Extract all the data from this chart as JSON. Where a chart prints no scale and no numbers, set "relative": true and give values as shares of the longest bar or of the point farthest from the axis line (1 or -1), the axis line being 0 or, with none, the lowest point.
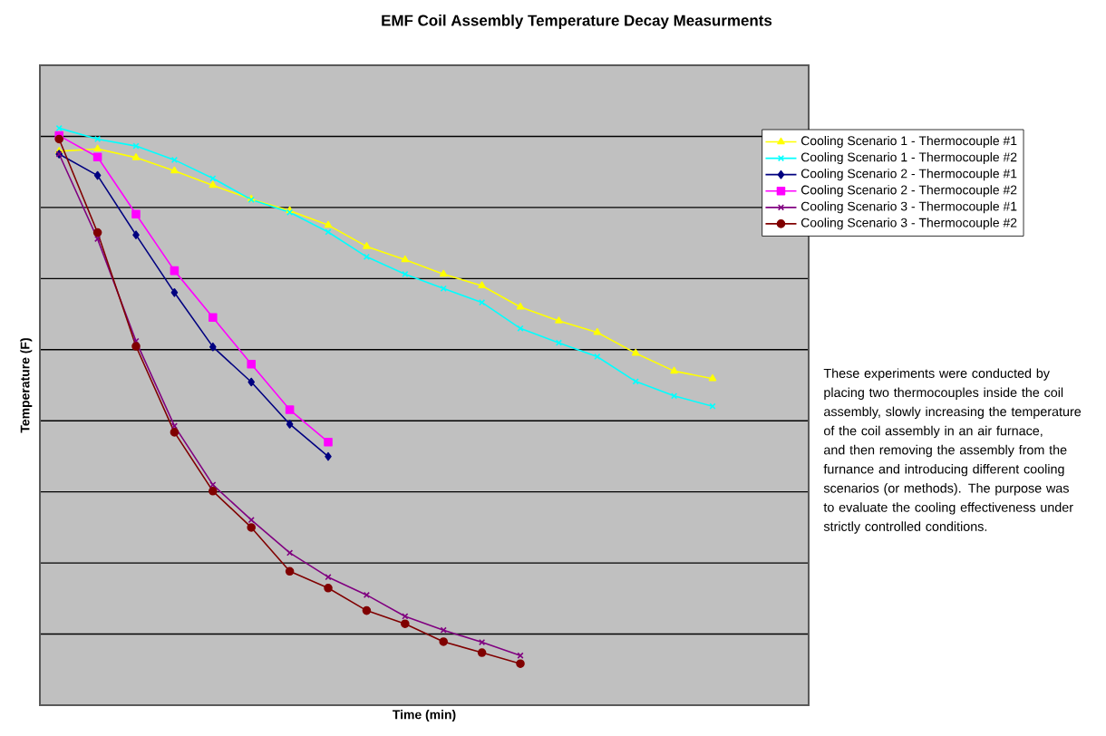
{
  "chart_data": {
    "type": "line",
    "title": "EMF Coil Assembly Temperature Decay Measurments",
    "xlabel": "Time (min)",
    "ylabel": "Temperature (F)",
    "relative": true,
    "grid": "y",
    "legend": "right",
    "annotations": [
      "These experiments were conducted by placing two thermocouples inside the coil assembly, slowly increasing the temperature of the coil assembly in an air furnace, and then removing the assembly from the furnance and introducing different cooling scenarios (or methods).  The purpose was to evaluate the cooling effectiveness under strictly controlled conditions."
    ],
    "categories": [
      null,
      null,
      null,
      null,
      null,
      null,
      null,
      null,
      null,
      null,
      null,
      null,
      null,
      null,
      null,
      null,
      null,
      null,
      null,
      null
    ],
    "series": [
      {
        "name": "Cooling Scenario 1 - Thermocouple #1",
        "color": "#ffff00",
        "marker": "triangle",
        "values": [
          0.96,
          0.964,
          0.949,
          0.926,
          0.901,
          0.877,
          0.857,
          0.832,
          0.795,
          0.772,
          0.747,
          0.727,
          0.69,
          0.666,
          0.646,
          0.61,
          0.579,
          0.566,
          null,
          null
        ]
      },
      {
        "name": "Cooling Scenario 1 - Thermocouple #2",
        "color": "#00ffff",
        "marker": "cross",
        "values": [
          1.0,
          0.981,
          0.969,
          0.945,
          0.913,
          0.876,
          0.854,
          0.82,
          0.777,
          0.747,
          0.722,
          0.698,
          0.653,
          0.628,
          0.604,
          0.561,
          0.536,
          0.518,
          null,
          null
        ]
      },
      {
        "name": "Cooling Scenario 2 - Thermocouple #1",
        "color": "#000080",
        "marker": "diamond",
        "values": [
          0.955,
          0.918,
          0.815,
          0.715,
          0.621,
          0.56,
          0.487,
          0.431,
          null,
          null,
          null,
          null,
          null,
          null,
          null,
          null,
          null,
          null,
          null,
          null
        ]
      },
      {
        "name": "Cooling Scenario 2 - Thermocouple #2",
        "color": "#ff00ff",
        "marker": "square",
        "values": [
          0.987,
          0.95,
          0.851,
          0.753,
          0.672,
          0.591,
          0.512,
          0.456,
          null,
          null,
          null,
          null,
          null,
          null,
          null,
          null,
          null,
          null,
          null,
          null
        ]
      },
      {
        "name": "Cooling Scenario 3 - Thermocouple #1",
        "color": "#800080",
        "marker": "cross",
        "values": [
          0.955,
          0.808,
          0.631,
          0.484,
          0.382,
          0.321,
          0.264,
          0.222,
          0.191,
          0.154,
          0.13,
          0.109,
          0.086,
          null,
          null,
          null,
          null,
          null,
          null,
          null
        ]
      },
      {
        "name": "Cooling Scenario 3 - Thermocouple #2",
        "color": "#800000",
        "marker": "circle",
        "values": [
          0.981,
          0.819,
          0.622,
          0.473,
          0.371,
          0.308,
          0.232,
          0.203,
          0.164,
          0.141,
          0.11,
          0.091,
          0.072,
          null,
          null,
          null,
          null,
          null,
          null,
          null
        ]
      }
    ]
  }
}
